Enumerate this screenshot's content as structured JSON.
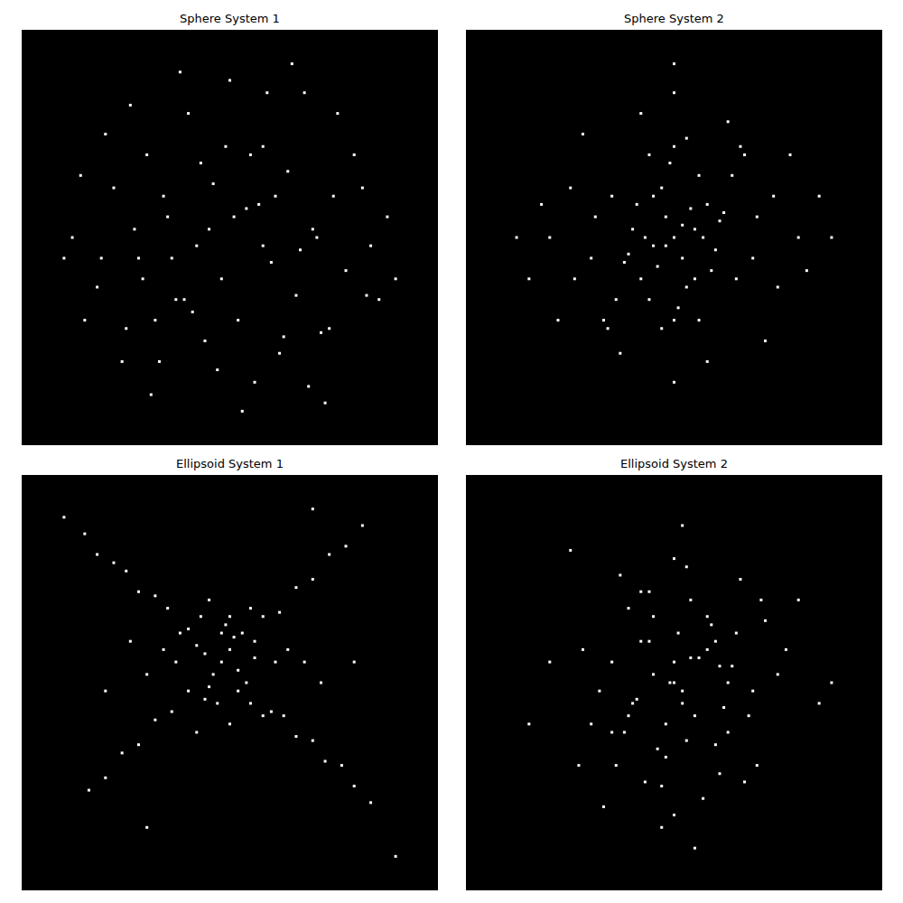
{
  "chart_data": [
    {
      "type": "scatter",
      "title": "Sphere System 1",
      "color": "#ffffff",
      "marker": "square",
      "tick_labels": false,
      "xlim": [
        0,
        100
      ],
      "ylim": [
        0,
        100
      ],
      "x": [
        12,
        18,
        22,
        25,
        28,
        30,
        33,
        35,
        37,
        40,
        42,
        44,
        46,
        48,
        50,
        52,
        54,
        56,
        58,
        60,
        62,
        64,
        66,
        68,
        70,
        72,
        75,
        78,
        80,
        84,
        88,
        15,
        20,
        26,
        31,
        38,
        45,
        53,
        61,
        69,
        76,
        83,
        10,
        24,
        34,
        43,
        51,
        59,
        67,
        74,
        82,
        90,
        14,
        29,
        41,
        55,
        63,
        71,
        86,
        36,
        47,
        57,
        65,
        27,
        39,
        49,
        73,
        19,
        32,
        58
      ],
      "y": [
        50,
        38,
        62,
        28,
        45,
        70,
        20,
        55,
        35,
        80,
        48,
        25,
        63,
        40,
        88,
        30,
        57,
        15,
        72,
        44,
        22,
        66,
        36,
        85,
        52,
        27,
        60,
        42,
        70,
        48,
        55,
        30,
        75,
        82,
        12,
        90,
        52,
        8,
        60,
        14,
        80,
        36,
        45,
        20,
        60,
        68,
        55,
        85,
        47,
        28,
        62,
        40,
        65,
        40,
        32,
        70,
        26,
        50,
        35,
        45,
        18,
        58,
        92,
        52,
        35,
        72,
        10,
        45,
        30,
        48
      ]
    },
    {
      "type": "scatter",
      "title": "Sphere System 2",
      "color": "#ffffff",
      "marker": "square",
      "tick_labels": false,
      "xlim": [
        0,
        100
      ],
      "ylim": [
        0,
        100
      ],
      "x": [
        50,
        48,
        52,
        45,
        55,
        42,
        58,
        47,
        53,
        40,
        60,
        44,
        56,
        50,
        38,
        62,
        46,
        54,
        49,
        51,
        35,
        65,
        43,
        57,
        30,
        70,
        25,
        75,
        20,
        80,
        15,
        85,
        33,
        67,
        28,
        72,
        37,
        63,
        50,
        50,
        41,
        59,
        36,
        64,
        22,
        78,
        18,
        82,
        48,
        52,
        45,
        55,
        39,
        61,
        31,
        69,
        26,
        74,
        12,
        88,
        50,
        47,
        53,
        44,
        56,
        34,
        66,
        58,
        42,
        50
      ],
      "y": [
        50,
        55,
        45,
        48,
        52,
        40,
        58,
        62,
        38,
        52,
        47,
        35,
        65,
        30,
        44,
        56,
        43,
        57,
        68,
        33,
        60,
        40,
        50,
        50,
        45,
        55,
        62,
        38,
        50,
        50,
        40,
        60,
        30,
        70,
        75,
        25,
        22,
        78,
        15,
        85,
        58,
        42,
        35,
        65,
        30,
        70,
        58,
        42,
        48,
        53,
        60,
        40,
        46,
        54,
        55,
        45,
        40,
        60,
        50,
        50,
        72,
        28,
        74,
        70,
        30,
        28,
        72,
        20,
        80,
        92
      ]
    },
    {
      "type": "scatter",
      "title": "Ellipsoid System 1",
      "color": "#ffffff",
      "marker": "square",
      "tick_labels": false,
      "xlim": [
        0,
        100
      ],
      "ylim": [
        0,
        100
      ],
      "x": [
        48,
        50,
        46,
        52,
        44,
        54,
        42,
        56,
        45,
        51,
        40,
        38,
        35,
        32,
        28,
        25,
        22,
        18,
        15,
        60,
        63,
        66,
        70,
        73,
        77,
        80,
        84,
        58,
        62,
        66,
        70,
        74,
        78,
        82,
        40,
        36,
        32,
        28,
        24,
        20,
        16,
        47,
        49,
        53,
        43,
        55,
        37,
        61,
        30,
        68,
        34,
        64,
        26,
        72,
        50,
        45,
        55,
        42,
        58,
        10,
        90,
        30,
        70,
        20,
        80,
        48,
        52,
        44,
        56,
        50
      ],
      "y": [
        55,
        58,
        52,
        53,
        57,
        50,
        59,
        56,
        49,
        61,
        63,
        62,
        68,
        71,
        72,
        77,
        79,
        81,
        86,
        43,
        42,
        37,
        36,
        31,
        30,
        25,
        21,
        66,
        67,
        73,
        75,
        81,
        83,
        88,
        48,
        43,
        41,
        35,
        33,
        27,
        24,
        45,
        64,
        62,
        66,
        45,
        55,
        55,
        52,
        55,
        58,
        58,
        60,
        50,
        40,
        70,
        68,
        38,
        42,
        90,
        8,
        15,
        92,
        48,
        55,
        62,
        48,
        46,
        60,
        66
      ]
    },
    {
      "type": "scatter",
      "title": "Ellipsoid System 2",
      "color": "#ffffff",
      "marker": "square",
      "tick_labels": false,
      "xlim": [
        0,
        100
      ],
      "ylim": [
        0,
        100
      ],
      "x": [
        52,
        50,
        55,
        48,
        58,
        45,
        60,
        42,
        63,
        40,
        65,
        38,
        68,
        35,
        70,
        32,
        72,
        30,
        75,
        28,
        54,
        47,
        57,
        44,
        61,
        39,
        66,
        36,
        50,
        53,
        46,
        59,
        43,
        62,
        49,
        56,
        41,
        64,
        51,
        53,
        20,
        85,
        15,
        88,
        25,
        80,
        52,
        55,
        45,
        60,
        33,
        71,
        37,
        67,
        48,
        58,
        42,
        63,
        50,
        47,
        27,
        77,
        35,
        69,
        54,
        44,
        61,
        39,
        52,
        50
      ],
      "y": [
        48,
        55,
        42,
        40,
        58,
        52,
        35,
        60,
        50,
        45,
        62,
        38,
        42,
        55,
        30,
        48,
        65,
        40,
        52,
        58,
        70,
        25,
        22,
        72,
        28,
        68,
        75,
        30,
        18,
        78,
        34,
        64,
        26,
        44,
        50,
        56,
        46,
        54,
        62,
        36,
        55,
        45,
        40,
        50,
        82,
        70,
        88,
        10,
        66,
        60,
        20,
        70,
        76,
        26,
        32,
        66,
        72,
        38,
        80,
        15,
        30,
        58,
        38,
        48,
        56,
        60,
        54,
        42,
        45,
        50
      ]
    }
  ]
}
